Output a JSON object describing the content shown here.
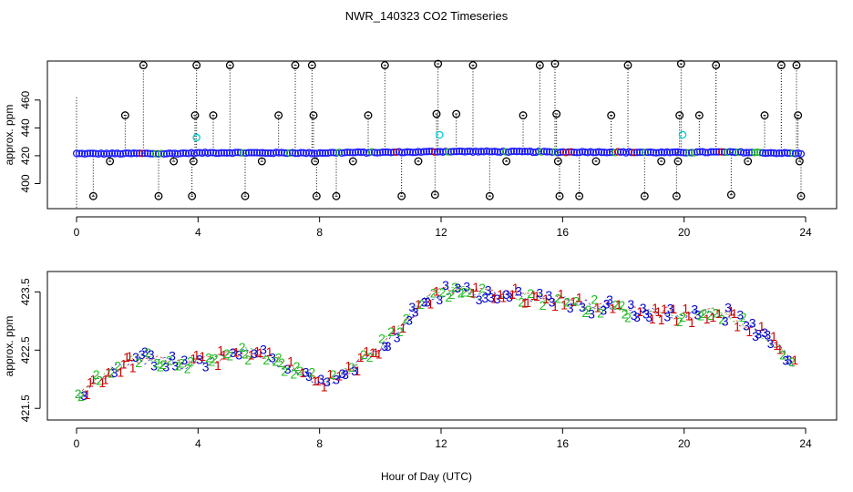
{
  "title": "NWR_140323  CO2 Timeseries",
  "xlabel": "Hour of Day (UTC)",
  "colors": {
    "series_1": "#cc0000",
    "series_2": "#22bb22",
    "series_3": "#0000cc",
    "flag_outlier": "#000000",
    "flag_cyan": "#00cccc",
    "blue_points": "#1a1aff"
  },
  "chart_data": [
    {
      "type": "scatter",
      "panel": "top",
      "ylabel": "approx. ppm",
      "xlim": [
        0,
        24
      ],
      "ylim": [
        382,
        488
      ],
      "xticks": [
        0,
        4,
        8,
        12,
        16,
        20,
        24
      ],
      "yticks": [
        400,
        420,
        440,
        460
      ],
      "baseline": {
        "x": [
          0,
          1,
          2,
          3,
          4,
          5,
          6,
          7,
          7.9,
          8,
          9,
          10,
          11,
          12,
          13,
          14,
          15,
          16,
          17,
          18,
          19,
          19.9,
          20,
          21,
          22,
          23,
          23.8
        ],
        "y": [
          421.5,
          421.5,
          421.6,
          421.5,
          422,
          422.2,
          422,
          422.1,
          421.8,
          422,
          422.3,
          422.4,
          422.6,
          423,
          423,
          422.9,
          422.8,
          422.6,
          422.7,
          422.5,
          422.4,
          422.3,
          422.4,
          422.6,
          422.4,
          422,
          421.6
        ]
      },
      "outliers": [
        {
          "x": 0.55,
          "y": 391
        },
        {
          "x": 1.1,
          "y": 416
        },
        {
          "x": 1.6,
          "y": 449
        },
        {
          "x": 2.2,
          "y": 485
        },
        {
          "x": 2.7,
          "y": 391
        },
        {
          "x": 3.2,
          "y": 416
        },
        {
          "x": 3.8,
          "y": 391
        },
        {
          "x": 3.85,
          "y": 416
        },
        {
          "x": 3.9,
          "y": 449
        },
        {
          "x": 3.95,
          "y": 485
        },
        {
          "x": 4.5,
          "y": 449
        },
        {
          "x": 5.05,
          "y": 485
        },
        {
          "x": 5.55,
          "y": 391
        },
        {
          "x": 6.1,
          "y": 416
        },
        {
          "x": 6.65,
          "y": 449
        },
        {
          "x": 7.2,
          "y": 485
        },
        {
          "x": 7.75,
          "y": 485
        },
        {
          "x": 7.8,
          "y": 449
        },
        {
          "x": 7.85,
          "y": 416
        },
        {
          "x": 7.9,
          "y": 391
        },
        {
          "x": 8.55,
          "y": 391
        },
        {
          "x": 9.1,
          "y": 416
        },
        {
          "x": 9.6,
          "y": 449
        },
        {
          "x": 10.15,
          "y": 485
        },
        {
          "x": 10.7,
          "y": 391
        },
        {
          "x": 11.25,
          "y": 416
        },
        {
          "x": 11.8,
          "y": 392
        },
        {
          "x": 11.85,
          "y": 450
        },
        {
          "x": 11.9,
          "y": 486
        },
        {
          "x": 12.5,
          "y": 450
        },
        {
          "x": 13.05,
          "y": 485
        },
        {
          "x": 13.6,
          "y": 391
        },
        {
          "x": 14.15,
          "y": 416
        },
        {
          "x": 14.7,
          "y": 449
        },
        {
          "x": 15.25,
          "y": 485
        },
        {
          "x": 15.75,
          "y": 486
        },
        {
          "x": 15.8,
          "y": 450
        },
        {
          "x": 15.85,
          "y": 416
        },
        {
          "x": 15.9,
          "y": 391
        },
        {
          "x": 16.55,
          "y": 391
        },
        {
          "x": 17.1,
          "y": 416
        },
        {
          "x": 17.6,
          "y": 449
        },
        {
          "x": 18.15,
          "y": 485
        },
        {
          "x": 18.7,
          "y": 391
        },
        {
          "x": 19.25,
          "y": 416
        },
        {
          "x": 19.75,
          "y": 391
        },
        {
          "x": 19.8,
          "y": 416
        },
        {
          "x": 19.85,
          "y": 449
        },
        {
          "x": 19.9,
          "y": 486
        },
        {
          "x": 20.5,
          "y": 449
        },
        {
          "x": 21.05,
          "y": 485
        },
        {
          "x": 21.55,
          "y": 392
        },
        {
          "x": 22.1,
          "y": 416
        },
        {
          "x": 22.65,
          "y": 449
        },
        {
          "x": 23.2,
          "y": 485
        },
        {
          "x": 23.7,
          "y": 485
        },
        {
          "x": 23.75,
          "y": 449
        },
        {
          "x": 23.8,
          "y": 416
        },
        {
          "x": 23.85,
          "y": 391
        }
      ],
      "cyan_points": [
        {
          "x": 3.95,
          "y": 433
        },
        {
          "x": 11.95,
          "y": 435
        },
        {
          "x": 19.95,
          "y": 435
        }
      ]
    },
    {
      "type": "scatter",
      "panel": "bottom",
      "ylabel": "approx. ppm",
      "xlim": [
        0,
        24
      ],
      "ylim": [
        421.3,
        423.85
      ],
      "xticks": [
        0,
        4,
        8,
        12,
        16,
        20,
        24
      ],
      "yticks": [
        421.5,
        422.5,
        423.5
      ],
      "ytick_labels": [
        "421.5",
        "422.5",
        "423.5"
      ],
      "series": [
        {
          "name": "1",
          "marker": "1"
        },
        {
          "name": "2",
          "marker": "2"
        },
        {
          "name": "3",
          "marker": "3"
        }
      ],
      "trend": {
        "x": [
          0,
          0.3,
          0.6,
          1,
          1.5,
          2,
          2.5,
          3,
          3.5,
          4,
          4.5,
          5,
          5.5,
          6,
          6.5,
          7,
          7.5,
          8,
          8.5,
          9,
          9.5,
          10,
          10.5,
          11,
          11.5,
          12,
          12.5,
          13,
          13.5,
          14,
          14.5,
          15,
          15.5,
          16,
          16.5,
          17,
          17.5,
          18,
          18.5,
          19,
          19.5,
          20,
          20.5,
          21,
          21.5,
          22,
          22.5,
          23,
          23.3,
          23.6
        ],
        "y": [
          421.65,
          421.8,
          421.95,
          422.1,
          422.25,
          422.35,
          422.35,
          422.3,
          422.25,
          422.3,
          422.35,
          422.4,
          422.45,
          422.45,
          422.35,
          422.2,
          422.1,
          422.0,
          422.0,
          422.15,
          422.35,
          422.55,
          422.8,
          423.1,
          423.35,
          423.5,
          423.55,
          423.5,
          423.45,
          423.45,
          423.45,
          423.4,
          423.4,
          423.35,
          423.3,
          423.25,
          423.25,
          423.2,
          423.15,
          423.15,
          423.15,
          423.1,
          423.1,
          423.15,
          423.1,
          422.95,
          422.8,
          422.6,
          422.45,
          422.3
        ]
      },
      "spread": 0.12
    }
  ]
}
